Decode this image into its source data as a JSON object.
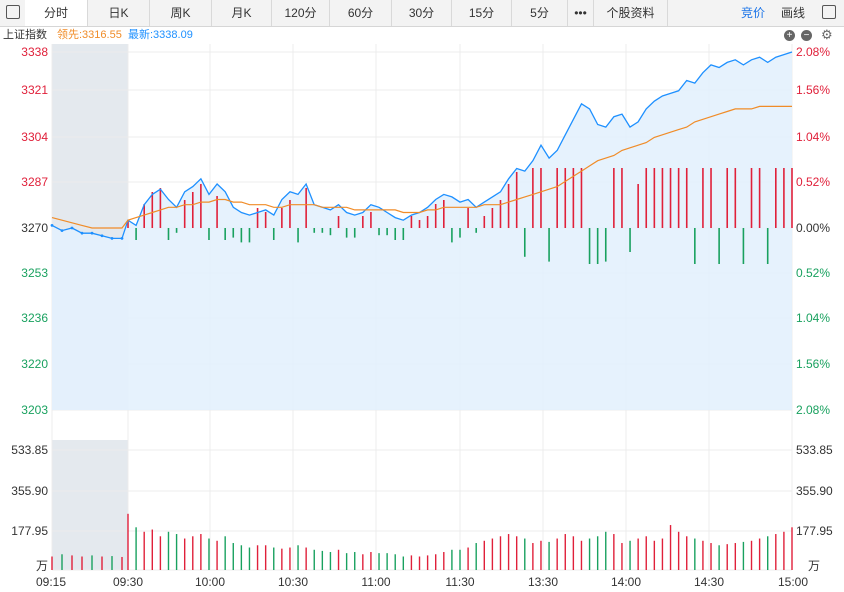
{
  "tabs": [
    {
      "label": "分时",
      "active": true
    },
    {
      "label": "日K"
    },
    {
      "label": "周K"
    },
    {
      "label": "月K"
    },
    {
      "label": "120分"
    },
    {
      "label": "60分"
    },
    {
      "label": "30分"
    },
    {
      "label": "15分"
    },
    {
      "label": "5分"
    },
    {
      "label": "•••"
    },
    {
      "label": "个股资料"
    }
  ],
  "right_buttons": {
    "bid": "竞价",
    "draw": "画线"
  },
  "info": {
    "name": "上证指数",
    "leading": "领先:3316.55",
    "latest": "最新:3338.09"
  },
  "colors": {
    "up": "#e0203a",
    "down": "#19a15f",
    "price": "#1e90ff",
    "avg": "#f08c28",
    "shade": "#e3f1fd",
    "preopen": "#e4e9ee"
  },
  "chart_data": {
    "type": "line",
    "time_labels": [
      "09:15",
      "09:30",
      "10:00",
      "10:30",
      "11:00",
      "11:30",
      "13:30",
      "14:00",
      "14:30",
      "15:00"
    ],
    "price_ticks_upper": [
      "3338",
      "3321",
      "3304",
      "3287"
    ],
    "price_base": "3270",
    "price_ticks_lower": [
      "3253",
      "3236",
      "3220",
      "3203"
    ],
    "pct_ticks_upper": [
      "2.08%",
      "1.56%",
      "1.04%",
      "0.52%"
    ],
    "pct_base": "0.00%",
    "pct_ticks_lower": [
      "0.52%",
      "1.04%",
      "1.56%",
      "2.08%"
    ],
    "volume_ticks": [
      "533.85",
      "355.90",
      "177.95"
    ],
    "volume_unit": "万",
    "ylim": [
      3203,
      3338
    ],
    "base_price": 3270,
    "price_series": [
      3271,
      3269,
      3270,
      3268,
      3268,
      3267,
      3266,
      3266,
      3273,
      3271,
      3279,
      3283,
      3285,
      3281,
      3278,
      3284,
      3286,
      3289,
      3283,
      3287,
      3284,
      3278,
      3276,
      3275,
      3276,
      3277,
      3275,
      3281,
      3284,
      3283,
      3287,
      3279,
      3278,
      3277,
      3279,
      3276,
      3275,
      3276,
      3279,
      3278,
      3276,
      3274,
      3273,
      3275,
      3276,
      3278,
      3281,
      3283,
      3282,
      3280,
      3281,
      3278,
      3280,
      3282,
      3284,
      3289,
      3293,
      3292,
      3296,
      3302,
      3297,
      3300,
      3306,
      3312,
      3318,
      3316,
      3310,
      3309,
      3313,
      3314,
      3309,
      3311,
      3316,
      3319,
      3321,
      3322,
      3323,
      3327,
      3326,
      3330,
      3333,
      3332,
      3334,
      3335,
      3333,
      3335,
      3336,
      3334,
      3336,
      3337,
      3338
    ],
    "avg_series": [
      3274,
      3273,
      3272,
      3271,
      3270,
      3270,
      3270,
      3270,
      3273,
      3274,
      3275,
      3276,
      3277,
      3278,
      3278,
      3279,
      3279,
      3280,
      3280,
      3281,
      3281,
      3280,
      3280,
      3279,
      3279,
      3279,
      3278,
      3278,
      3279,
      3279,
      3279,
      3279,
      3278,
      3278,
      3278,
      3278,
      3277,
      3277,
      3277,
      3277,
      3277,
      3277,
      3276,
      3276,
      3276,
      3277,
      3277,
      3278,
      3278,
      3278,
      3278,
      3278,
      3279,
      3279,
      3279,
      3280,
      3281,
      3282,
      3283,
      3284,
      3285,
      3286,
      3288,
      3290,
      3292,
      3294,
      3296,
      3297,
      3298,
      3300,
      3301,
      3302,
      3303,
      3305,
      3306,
      3307,
      3308,
      3309,
      3311,
      3312,
      3313,
      3314,
      3315,
      3316,
      3316,
      3316,
      3317,
      3317,
      3317,
      3317,
      3317
    ],
    "volume_max": 533.85,
    "volume_series": [
      60,
      70,
      65,
      60,
      65,
      60,
      62,
      58,
      250,
      190,
      170,
      180,
      150,
      170,
      160,
      140,
      150,
      160,
      140,
      130,
      150,
      120,
      110,
      100,
      110,
      110,
      100,
      95,
      100,
      110,
      100,
      90,
      85,
      80,
      90,
      75,
      80,
      70,
      80,
      75,
      75,
      70,
      60,
      65,
      60,
      65,
      70,
      80,
      90,
      90,
      100,
      120,
      130,
      140,
      150,
      160,
      150,
      140,
      120,
      130,
      125,
      140,
      160,
      150,
      130,
      140,
      150,
      170,
      160,
      120,
      130,
      140,
      150,
      130,
      140,
      200,
      170,
      150,
      140,
      130,
      120,
      110,
      115,
      120,
      125,
      130,
      140,
      150,
      160,
      170,
      190
    ],
    "volume_up": [
      1,
      0,
      1,
      1,
      0,
      1,
      0,
      1,
      1,
      0,
      1,
      1,
      1,
      0,
      0,
      1,
      1,
      1,
      0,
      1,
      0,
      0,
      0,
      0,
      1,
      1,
      0,
      1,
      1,
      0,
      1,
      0,
      0,
      0,
      1,
      0,
      0,
      1,
      1,
      0,
      0,
      0,
      0,
      1,
      1,
      1,
      1,
      1,
      0,
      0,
      1,
      0,
      1,
      1,
      1,
      1,
      1,
      0,
      1,
      1,
      0,
      1,
      1,
      1,
      1,
      0,
      0,
      0,
      1,
      1,
      0,
      1,
      1,
      1,
      1,
      1,
      1,
      1,
      0,
      1,
      1,
      0,
      1,
      1,
      0,
      1,
      1,
      0,
      1,
      1,
      1
    ]
  }
}
